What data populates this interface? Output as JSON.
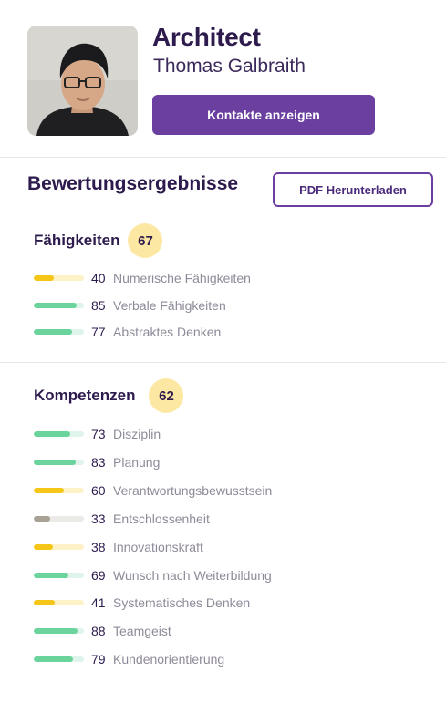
{
  "profile": {
    "role": "Architect",
    "name": "Thomas Galbraith",
    "contacts_button": "Kontakte anzeigen",
    "avatar_icon": "person-photo"
  },
  "results": {
    "title": "Bewertungsergebnisse",
    "pdf_button": "PDF Herunterladen"
  },
  "skills": {
    "title": "Fähigkeiten",
    "score": "67",
    "items": [
      {
        "value": "40",
        "label": "Numerische Fähigkeiten",
        "level": 0.4,
        "color": "yellow"
      },
      {
        "value": "85",
        "label": "Verbale Fähigkeiten",
        "level": 0.85,
        "color": "green"
      },
      {
        "value": "77",
        "label": "Abstraktes Denken",
        "level": 0.77,
        "color": "green"
      }
    ]
  },
  "competencies": {
    "title": "Kompetenzen",
    "score": "62",
    "items": [
      {
        "value": "73",
        "label": "Disziplin",
        "level": 0.73,
        "color": "green"
      },
      {
        "value": "83",
        "label": "Planung",
        "level": 0.83,
        "color": "green"
      },
      {
        "value": "60",
        "label": "Verantwortungsbewusstsein",
        "level": 0.6,
        "color": "yellow"
      },
      {
        "value": "33",
        "label": "Entschlossenheit",
        "level": 0.33,
        "color": "gray"
      },
      {
        "value": "38",
        "label": "Innovationskraft",
        "level": 0.38,
        "color": "yellow"
      },
      {
        "value": "69",
        "label": "Wunsch nach Weiterbildung",
        "level": 0.69,
        "color": "green"
      },
      {
        "value": "41",
        "label": "Systematisches Denken",
        "level": 0.41,
        "color": "yellow"
      },
      {
        "value": "88",
        "label": "Teamgeist",
        "level": 0.88,
        "color": "green"
      },
      {
        "value": "79",
        "label": "Kundenorientierung",
        "level": 0.79,
        "color": "green"
      }
    ]
  },
  "colors": {
    "brand": "#6b3fa0",
    "score_bg": "#fde8a3",
    "green": "#6bd49c",
    "yellow": "#f5c518",
    "gray": "#a8a194"
  }
}
